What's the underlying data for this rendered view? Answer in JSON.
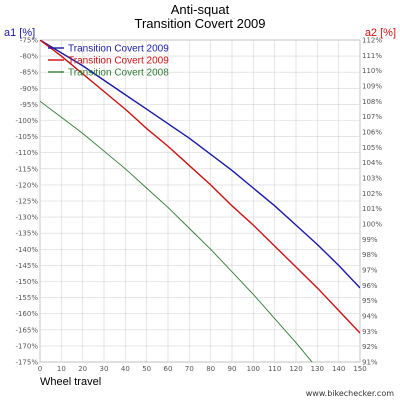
{
  "chart_data": {
    "type": "line",
    "title": "Anti-squat",
    "subtitle": "Transition Covert 2009",
    "xlabel": "Wheel travel",
    "ylabel_left": "a1 [%]",
    "ylabel_right": "a2 [%]",
    "xlim": [
      0,
      150
    ],
    "ylim_left": [
      -175,
      -75
    ],
    "ylim_right": [
      91,
      112
    ],
    "x_ticks": [
      0,
      10,
      20,
      30,
      40,
      50,
      60,
      70,
      80,
      90,
      100,
      110,
      120,
      130,
      140,
      150
    ],
    "y_left_ticks": [
      "-75%",
      "-80%",
      "-85%",
      "-90%",
      "-95%",
      "-100%",
      "-105%",
      "-110%",
      "-115%",
      "-120%",
      "-125%",
      "-130%",
      "-135%",
      "-140%",
      "-145%",
      "-150%",
      "-155%",
      "-160%",
      "-165%",
      "-170%",
      "-175%"
    ],
    "y_right_ticks": [
      "112%",
      "111%",
      "110%",
      "109%",
      "108%",
      "107%",
      "106%",
      "105%",
      "104%",
      "103%",
      "102%",
      "101%",
      "100%",
      "99%",
      "98%",
      "97%",
      "96%",
      "95%",
      "94%",
      "93%",
      "92%",
      "91%"
    ],
    "grid": true,
    "legend_position": "top-left",
    "series": [
      {
        "name": "Transition Covert 2009",
        "color": "#1a1aa8",
        "axis": "left",
        "x": [
          0,
          10,
          20,
          30,
          40,
          50,
          60,
          70,
          80,
          90,
          100,
          110,
          120,
          130,
          140,
          150
        ],
        "values": [
          -75,
          -79,
          -83,
          -87.5,
          -92,
          -96.5,
          -101,
          -105.5,
          -110.5,
          -115.5,
          -121,
          -126.5,
          -132.5,
          -138.5,
          -145,
          -152
        ]
      },
      {
        "name": "Transition Covert 2009",
        "color": "#cc1111",
        "axis": "left",
        "x": [
          0,
          10,
          20,
          30,
          40,
          50,
          60,
          70,
          80,
          90,
          100,
          110,
          120,
          130,
          140,
          150
        ],
        "values": [
          -75,
          -80,
          -85.5,
          -91,
          -96.5,
          -102.5,
          -108,
          -114,
          -120,
          -126.5,
          -132.5,
          -139,
          -145.5,
          -152,
          -159,
          -166
        ]
      },
      {
        "name": "Transition Covert 2008",
        "color": "#2e7d32",
        "axis": "left",
        "x": [
          0,
          10,
          20,
          30,
          40,
          50,
          60,
          70,
          80,
          90,
          100,
          110,
          120,
          130,
          140
        ],
        "values": [
          -94,
          -99,
          -104,
          -109.5,
          -115,
          -121,
          -127,
          -133.5,
          -140,
          -147,
          -154,
          -161.5,
          -169,
          -177,
          -185
        ]
      }
    ]
  },
  "watermark": "www.bikechecker.com"
}
